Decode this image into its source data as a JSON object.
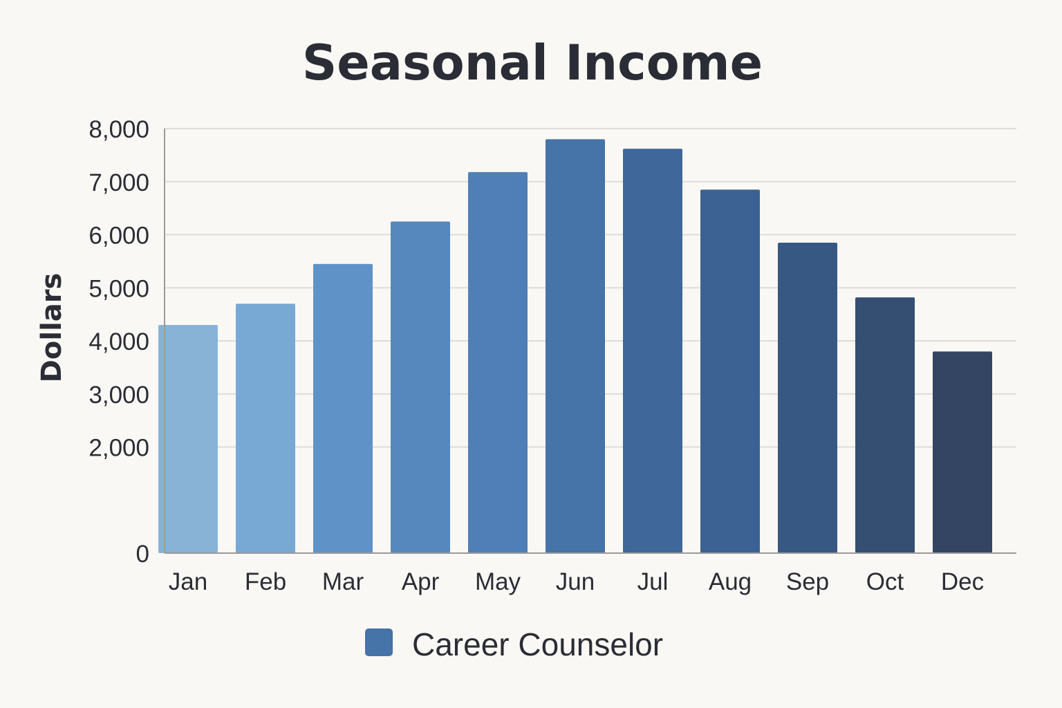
{
  "chart_data": {
    "type": "bar",
    "title": "Seasonal Income",
    "xlabel": "",
    "ylabel": "Dollars",
    "categories": [
      "Jan",
      "Feb",
      "Mar",
      "Apr",
      "May",
      "Jun",
      "Jul",
      "Aug",
      "Sep",
      "Oct",
      "Dec"
    ],
    "series": [
      {
        "name": "Career Counselor",
        "values": [
          4300,
          4700,
          5450,
          6250,
          7180,
          7800,
          7620,
          6850,
          5850,
          4820,
          3800
        ]
      }
    ],
    "ylim": [
      0,
      8000
    ],
    "yticks": [
      0,
      2000,
      3000,
      4000,
      5000,
      6000,
      7000,
      8000
    ],
    "ytick_labels": [
      "0",
      "2,000",
      "3,000",
      "4,000",
      "5,000",
      "6,000",
      "7,000",
      "8,000"
    ],
    "grid": true,
    "legend_position": "bottom-center",
    "bar_colors": [
      "#88b3d7",
      "#78a9d4",
      "#5f93c7",
      "#5687bd",
      "#4f7fb6",
      "#4673a8",
      "#40679a",
      "#3c6293",
      "#375883",
      "#354f72",
      "#334563"
    ],
    "legend_color": "#4673a8"
  }
}
